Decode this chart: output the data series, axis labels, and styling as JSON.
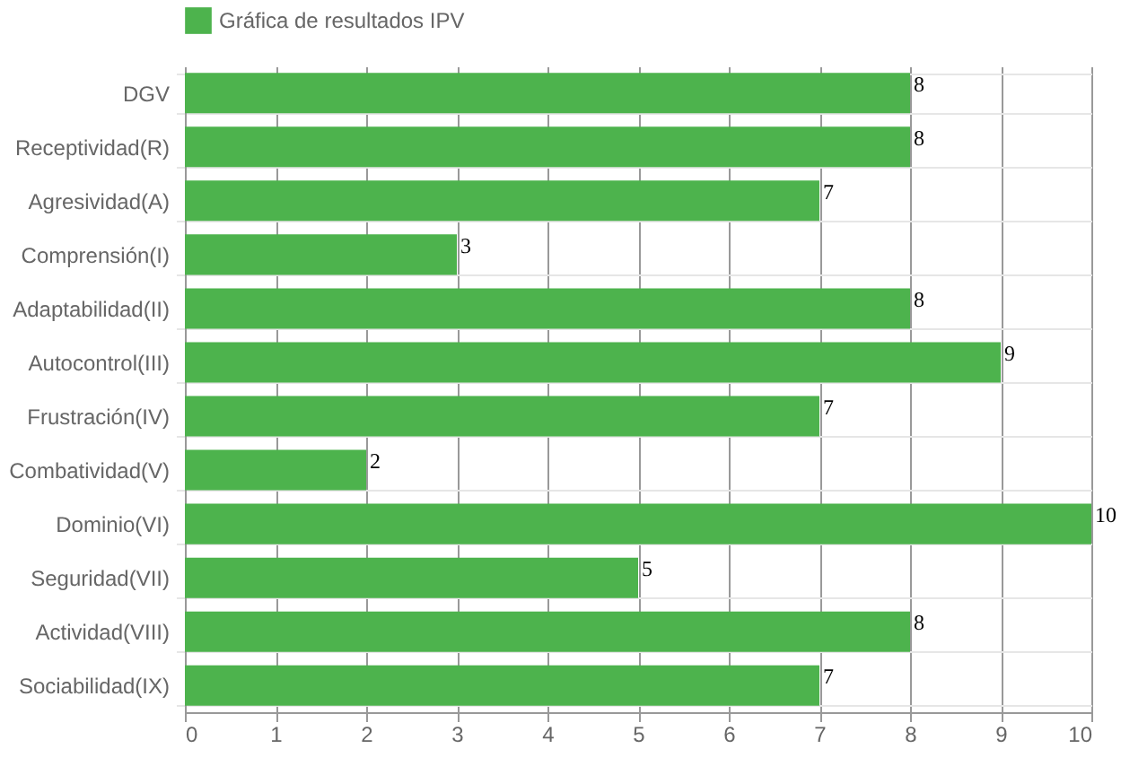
{
  "chart_data": {
    "type": "bar",
    "orientation": "horizontal",
    "categories": [
      "DGV",
      "Receptividad(R)",
      "Agresividad(A)",
      "Comprensión(I)",
      "Adaptabilidad(II)",
      "Autocontrol(III)",
      "Frustración(IV)",
      "Combatividad(V)",
      "Dominio(VI)",
      "Seguridad(VII)",
      "Actividad(VIII)",
      "Sociabilidad(IX)"
    ],
    "series": [
      {
        "name": "Gráfica de resultados IPV",
        "color": "#4db34d",
        "values": [
          8,
          8,
          7,
          3,
          8,
          9,
          7,
          2,
          10,
          5,
          8,
          7
        ]
      }
    ],
    "xlim": [
      0,
      10
    ],
    "xticks": [
      0,
      1,
      2,
      3,
      4,
      5,
      6,
      7,
      8,
      9,
      10
    ],
    "grid": true,
    "legend": "top",
    "data_labels": true
  }
}
